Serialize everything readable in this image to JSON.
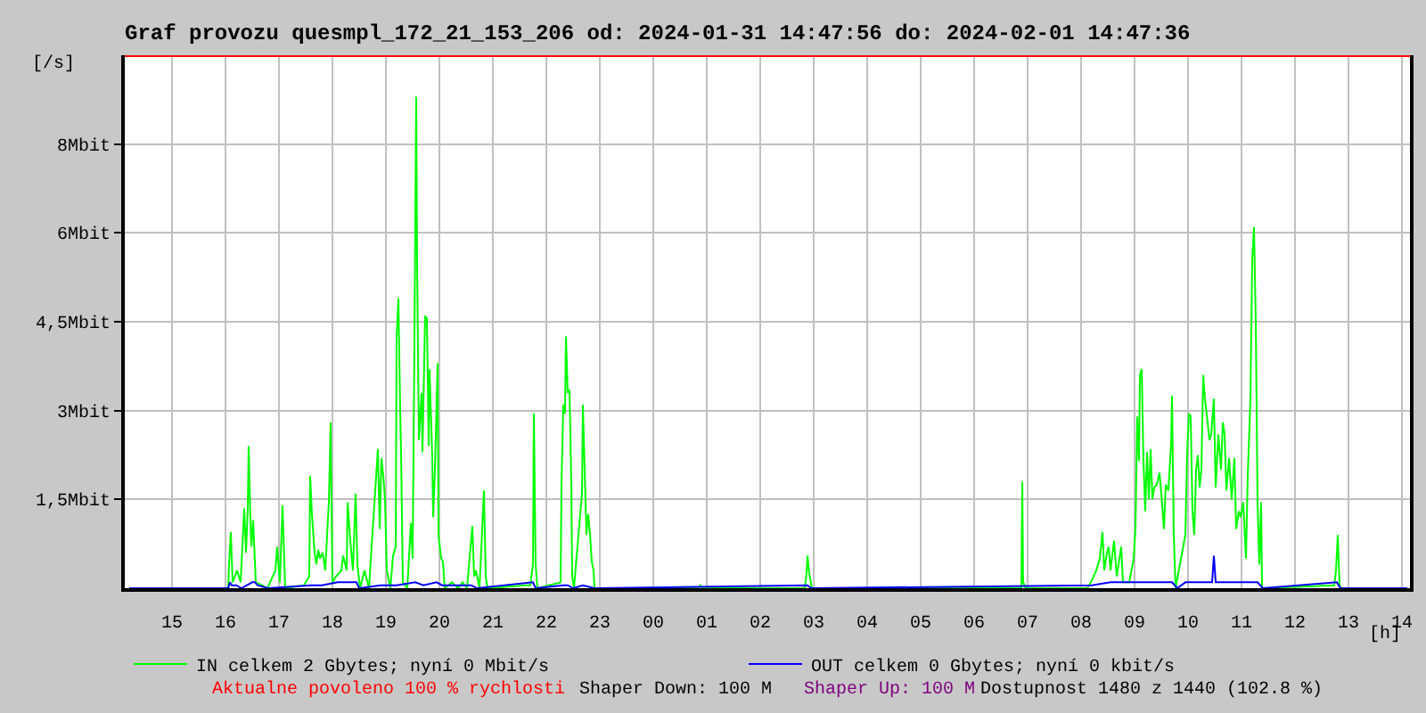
{
  "chart_data": {
    "type": "line",
    "title": "Graf provozu quesmpl_172_21_153_206 od: 2024-01-31 14:47:56 do: 2024-02-01 14:47:36",
    "xlabel": "[h]",
    "ylabel": "[/s]",
    "xlim": [
      "2024-01-31T14:07",
      "2024-02-01T14:09"
    ],
    "xticks": [
      {
        "value": "2024-01-31T15:00",
        "label": "15"
      },
      {
        "value": "2024-01-31T16:00",
        "label": "16"
      },
      {
        "value": "2024-01-31T17:00",
        "label": "17"
      },
      {
        "value": "2024-01-31T18:00",
        "label": "18"
      },
      {
        "value": "2024-01-31T19:00",
        "label": "19"
      },
      {
        "value": "2024-01-31T20:00",
        "label": "20"
      },
      {
        "value": "2024-01-31T21:00",
        "label": "21"
      },
      {
        "value": "2024-01-31T22:00",
        "label": "22"
      },
      {
        "value": "2024-01-31T23:00",
        "label": "23"
      },
      {
        "value": "2024-02-01T00:00",
        "label": "00"
      },
      {
        "value": "2024-02-01T01:00",
        "label": "01"
      },
      {
        "value": "2024-02-01T02:00",
        "label": "02"
      },
      {
        "value": "2024-02-01T03:00",
        "label": "03"
      },
      {
        "value": "2024-02-01T04:00",
        "label": "04"
      },
      {
        "value": "2024-02-01T05:00",
        "label": "05"
      },
      {
        "value": "2024-02-01T06:00",
        "label": "06"
      },
      {
        "value": "2024-02-01T07:00",
        "label": "07"
      },
      {
        "value": "2024-02-01T08:00",
        "label": "08"
      },
      {
        "value": "2024-02-01T09:00",
        "label": "09"
      },
      {
        "value": "2024-02-01T10:00",
        "label": "10"
      },
      {
        "value": "2024-02-01T11:00",
        "label": "11"
      },
      {
        "value": "2024-02-01T12:00",
        "label": "12"
      },
      {
        "value": "2024-02-01T13:00",
        "label": "13"
      },
      {
        "value": "2024-02-01T14:00",
        "label": "14"
      }
    ],
    "ylim": [
      0,
      9
    ],
    "yticks": [
      {
        "value": 1.5,
        "label": "1,5Mbit"
      },
      {
        "value": 3,
        "label": "3Mbit"
      },
      {
        "value": 4.5,
        "label": "4,5Mbit"
      },
      {
        "value": 6,
        "label": "6Mbit"
      },
      {
        "value": 7.5,
        "label": "8Mbit"
      }
    ],
    "grid": true,
    "legend": "bottom",
    "ref_lines": [
      {
        "axis": "y",
        "value": 9,
        "color": "#ff0000"
      }
    ],
    "annotations": [
      "Aktualne povoleno 100 % rychlosti",
      "Shaper Down: 100 M",
      "Shaper Up: 100 M",
      "Dostupnost 1480 z 1440 (102.8 %)"
    ],
    "series": [
      {
        "name": "IN celkem 2 Gbytes; nyní 0 Mbit/s",
        "color": "#00ff00",
        "x": [
          "2024-01-31T14:12",
          "2024-01-31T16:03",
          "2024-01-31T16:04",
          "2024-01-31T16:06",
          "2024-01-31T16:08",
          "2024-01-31T16:13",
          "2024-01-31T16:17",
          "2024-01-31T16:21",
          "2024-01-31T16:23",
          "2024-01-31T16:25",
          "2024-01-31T16:26",
          "2024-01-31T16:28",
          "2024-01-31T16:29",
          "2024-01-31T16:31",
          "2024-01-31T16:34",
          "2024-01-31T16:41",
          "2024-01-31T16:47",
          "2024-01-31T16:56",
          "2024-01-31T16:58",
          "2024-01-31T17:01",
          "2024-01-31T17:04",
          "2024-01-31T17:07",
          "2024-01-31T17:28",
          "2024-01-31T17:34",
          "2024-01-31T17:35",
          "2024-01-31T17:37",
          "2024-01-31T17:40",
          "2024-01-31T17:42",
          "2024-01-31T17:44",
          "2024-01-31T17:46",
          "2024-01-31T17:49",
          "2024-01-31T17:52",
          "2024-01-31T17:54",
          "2024-01-31T17:56",
          "2024-01-31T17:58",
          "2024-01-31T18:00",
          "2024-01-31T18:04",
          "2024-01-31T18:10",
          "2024-01-31T18:12",
          "2024-01-31T18:16",
          "2024-01-31T18:17",
          "2024-01-31T18:20",
          "2024-01-31T18:23",
          "2024-01-31T18:26",
          "2024-01-31T18:28",
          "2024-01-31T18:31",
          "2024-01-31T18:36",
          "2024-01-31T18:41",
          "2024-01-31T18:51",
          "2024-01-31T18:53",
          "2024-01-31T18:55",
          "2024-01-31T18:57",
          "2024-01-31T18:59",
          "2024-01-31T19:01",
          "2024-01-31T19:05",
          "2024-01-31T19:08",
          "2024-01-31T19:11",
          "2024-01-31T19:12",
          "2024-01-31T19:14",
          "2024-01-31T19:16",
          "2024-01-31T19:17",
          "2024-01-31T19:19",
          "2024-01-31T19:24",
          "2024-01-31T19:28",
          "2024-01-31T19:30",
          "2024-01-31T19:32",
          "2024-01-31T19:34",
          "2024-01-31T19:35",
          "2024-01-31T19:37",
          "2024-01-31T19:40",
          "2024-01-31T19:41",
          "2024-01-31T19:44",
          "2024-01-31T19:46",
          "2024-01-31T19:48",
          "2024-01-31T19:49",
          "2024-01-31T19:52",
          "2024-01-31T19:53",
          "2024-01-31T19:55",
          "2024-01-31T19:58",
          "2024-01-31T19:59",
          "2024-01-31T20:02",
          "2024-01-31T20:04",
          "2024-01-31T20:06",
          "2024-01-31T20:14",
          "2024-01-31T20:21",
          "2024-01-31T20:26",
          "2024-01-31T20:31",
          "2024-01-31T20:37",
          "2024-01-31T20:39",
          "2024-01-31T20:41",
          "2024-01-31T20:45",
          "2024-01-31T20:50",
          "2024-01-31T20:52",
          "2024-01-31T20:54",
          "2024-01-31T21:36",
          "2024-01-31T21:42",
          "2024-01-31T21:45",
          "2024-01-31T21:46",
          "2024-01-31T21:48",
          "2024-01-31T21:50",
          "2024-01-31T22:16",
          "2024-01-31T22:17",
          "2024-01-31T22:19",
          "2024-01-31T22:21",
          "2024-01-31T22:22",
          "2024-01-31T22:24",
          "2024-01-31T22:26",
          "2024-01-31T22:28",
          "2024-01-31T22:29",
          "2024-01-31T22:31",
          "2024-01-31T22:40",
          "2024-01-31T22:41",
          "2024-01-31T22:43",
          "2024-01-31T22:45",
          "2024-01-31T22:47",
          "2024-01-31T22:49",
          "2024-01-31T22:51",
          "2024-01-31T22:53",
          "2024-01-31T22:54",
          "2024-02-01T00:51",
          "2024-02-01T00:53",
          "2024-02-01T00:55",
          "2024-02-01T02:50",
          "2024-02-01T02:52",
          "2024-02-01T02:53",
          "2024-02-01T02:55",
          "2024-02-01T02:58",
          "2024-02-01T06:53",
          "2024-02-01T06:54",
          "2024-02-01T06:55",
          "2024-02-01T06:58",
          "2024-02-01T08:07",
          "2024-02-01T08:11",
          "2024-02-01T08:17",
          "2024-02-01T08:21",
          "2024-02-01T08:24",
          "2024-02-01T08:26",
          "2024-02-01T08:29",
          "2024-02-01T08:31",
          "2024-02-01T08:33",
          "2024-02-01T08:37",
          "2024-02-01T08:40",
          "2024-02-01T08:45",
          "2024-02-01T08:47",
          "2024-02-01T08:54",
          "2024-02-01T08:59",
          "2024-02-01T09:01",
          "2024-02-01T09:03",
          "2024-02-01T09:05",
          "2024-02-01T09:06",
          "2024-02-01T09:08",
          "2024-02-01T09:10",
          "2024-02-01T09:12",
          "2024-02-01T09:14",
          "2024-02-01T09:16",
          "2024-02-01T09:18",
          "2024-02-01T09:20",
          "2024-02-01T09:22",
          "2024-02-01T09:25",
          "2024-02-01T09:28",
          "2024-02-01T09:30",
          "2024-02-01T09:33",
          "2024-02-01T09:35",
          "2024-02-01T09:38",
          "2024-02-01T09:41",
          "2024-02-01T09:42",
          "2024-02-01T09:44",
          "2024-02-01T09:46",
          "2024-02-01T09:57",
          "2024-02-01T09:59",
          "2024-02-01T10:01",
          "2024-02-01T10:03",
          "2024-02-01T10:05",
          "2024-02-01T10:07",
          "2024-02-01T10:09",
          "2024-02-01T10:11",
          "2024-02-01T10:13",
          "2024-02-01T10:15",
          "2024-02-01T10:17",
          "2024-02-01T10:19",
          "2024-02-01T10:22",
          "2024-02-01T10:24",
          "2024-02-01T10:26",
          "2024-02-01T10:29",
          "2024-02-01T10:31",
          "2024-02-01T10:34",
          "2024-02-01T10:37",
          "2024-02-01T10:39",
          "2024-02-01T10:41",
          "2024-02-01T10:43",
          "2024-02-01T10:46",
          "2024-02-01T10:49",
          "2024-02-01T10:52",
          "2024-02-01T10:54",
          "2024-02-01T10:57",
          "2024-02-01T10:59",
          "2024-02-01T11:02",
          "2024-02-01T11:05",
          "2024-02-01T11:07",
          "2024-02-01T11:10",
          "2024-02-01T11:12",
          "2024-02-01T11:14",
          "2024-02-01T11:16",
          "2024-02-01T11:18",
          "2024-02-01T11:20",
          "2024-02-01T11:22",
          "2024-02-01T11:23",
          "2024-02-01T12:44",
          "2024-02-01T12:46",
          "2024-02-01T12:48",
          "2024-02-01T12:50",
          "2024-02-01T12:52",
          "2024-02-01T14:06"
        ],
        "values": [
          0,
          0,
          0.4,
          0.95,
          0.1,
          0.3,
          0.1,
          1.35,
          0.6,
          1.35,
          2.4,
          1.15,
          0.7,
          1.15,
          0.1,
          0.05,
          0,
          0.3,
          0.7,
          0.1,
          1.4,
          0,
          0.05,
          0.2,
          1.9,
          1.25,
          0.6,
          0.4,
          0.65,
          0.5,
          0.6,
          0.3,
          0.9,
          1.45,
          2.8,
          0.1,
          0.2,
          0.3,
          0.55,
          0.3,
          1.45,
          0.8,
          0.3,
          1.6,
          0.4,
          0,
          0.3,
          0,
          2.35,
          1.0,
          2.2,
          1.9,
          1.5,
          0.3,
          0,
          0.55,
          0.7,
          4.25,
          4.9,
          3.0,
          2.3,
          0.1,
          0,
          1.1,
          0.5,
          4.15,
          8.3,
          5.5,
          2.5,
          3.3,
          2.3,
          4.6,
          4.55,
          2.4,
          3.7,
          2.2,
          1.2,
          2.0,
          3.8,
          0.9,
          0.5,
          0.45,
          0,
          0.1,
          0,
          0.1,
          0,
          1.05,
          0.2,
          0.3,
          0,
          1.65,
          0.2,
          0,
          0.05,
          0.05,
          0.4,
          2.95,
          0.4,
          0,
          0.1,
          1.75,
          3.1,
          2.95,
          4.25,
          3.3,
          3.35,
          1.8,
          0.2,
          0,
          1.6,
          3.1,
          2.0,
          0.9,
          1.25,
          0.9,
          0.45,
          0.3,
          0,
          0,
          0.05,
          0,
          0,
          0.25,
          0.55,
          0.25,
          0,
          0,
          1.8,
          0.1,
          0,
          0,
          0.1,
          0.3,
          0.5,
          0.95,
          0.3,
          0.6,
          0.7,
          0.3,
          0.8,
          0.2,
          0.7,
          0.1,
          0.1,
          0.5,
          1.0,
          2.9,
          2.15,
          3.6,
          3.7,
          2.15,
          1.3,
          2.3,
          1.5,
          2.35,
          1.5,
          1.7,
          1.75,
          1.95,
          1.6,
          1.0,
          1.75,
          1.65,
          2.45,
          3.25,
          0.9,
          0,
          0.9,
          2.3,
          2.95,
          2.9,
          1.3,
          0.9,
          2.0,
          2.25,
          1.7,
          2.0,
          3.6,
          3.2,
          2.8,
          2.5,
          2.6,
          3.2,
          1.7,
          2.6,
          2.0,
          2.8,
          2.6,
          1.65,
          2.2,
          1.5,
          2.2,
          1.0,
          1.3,
          1.2,
          1.45,
          0.5,
          1.9,
          3.2,
          5.55,
          6.1,
          4.5,
          1.45,
          0.4,
          1.45,
          0,
          0.05,
          0.3,
          0.9,
          0.05,
          0,
          0
        ]
      },
      {
        "name": "OUT celkem 0 Gbytes; nyní 0 kbit/s",
        "color": "#0000ff",
        "x": [
          "2024-01-31T14:12",
          "2024-01-31T16:03",
          "2024-01-31T16:05",
          "2024-01-31T16:07",
          "2024-01-31T16:12",
          "2024-01-31T16:18",
          "2024-01-31T16:30",
          "2024-01-31T16:33",
          "2024-01-31T16:36",
          "2024-01-31T16:48",
          "2024-01-31T17:36",
          "2024-01-31T17:48",
          "2024-01-31T18:06",
          "2024-01-31T18:18",
          "2024-01-31T18:27",
          "2024-01-31T18:30",
          "2024-01-31T18:54",
          "2024-01-31T19:12",
          "2024-01-31T19:33",
          "2024-01-31T19:42",
          "2024-01-31T19:57",
          "2024-01-31T20:03",
          "2024-01-31T20:18",
          "2024-01-31T20:36",
          "2024-01-31T20:42",
          "2024-01-31T21:45",
          "2024-01-31T21:48",
          "2024-01-31T22:19",
          "2024-01-31T22:24",
          "2024-01-31T22:30",
          "2024-01-31T22:41",
          "2024-01-31T22:54",
          "2024-02-01T02:53",
          "2024-02-01T02:57",
          "2024-02-01T08:12",
          "2024-02-01T08:33",
          "2024-02-01T09:00",
          "2024-02-01T09:42",
          "2024-02-01T09:48",
          "2024-02-01T09:57",
          "2024-02-01T10:27",
          "2024-02-01T10:29",
          "2024-02-01T10:31",
          "2024-02-01T11:18",
          "2024-02-01T11:24",
          "2024-02-01T12:47",
          "2024-02-01T12:51",
          "2024-02-01T14:06"
        ],
        "values": [
          0,
          0,
          0.1,
          0.05,
          0.05,
          0,
          0.1,
          0.1,
          0.05,
          0,
          0.05,
          0.05,
          0.1,
          0.1,
          0.1,
          0,
          0.05,
          0.05,
          0.1,
          0.05,
          0.1,
          0.05,
          0.05,
          0.05,
          0,
          0.1,
          0,
          0.05,
          0.05,
          0,
          0.05,
          0,
          0.05,
          0,
          0.05,
          0.1,
          0.1,
          0.1,
          0,
          0.1,
          0.1,
          0.55,
          0.1,
          0.1,
          0,
          0.1,
          0,
          0
        ]
      }
    ]
  }
}
